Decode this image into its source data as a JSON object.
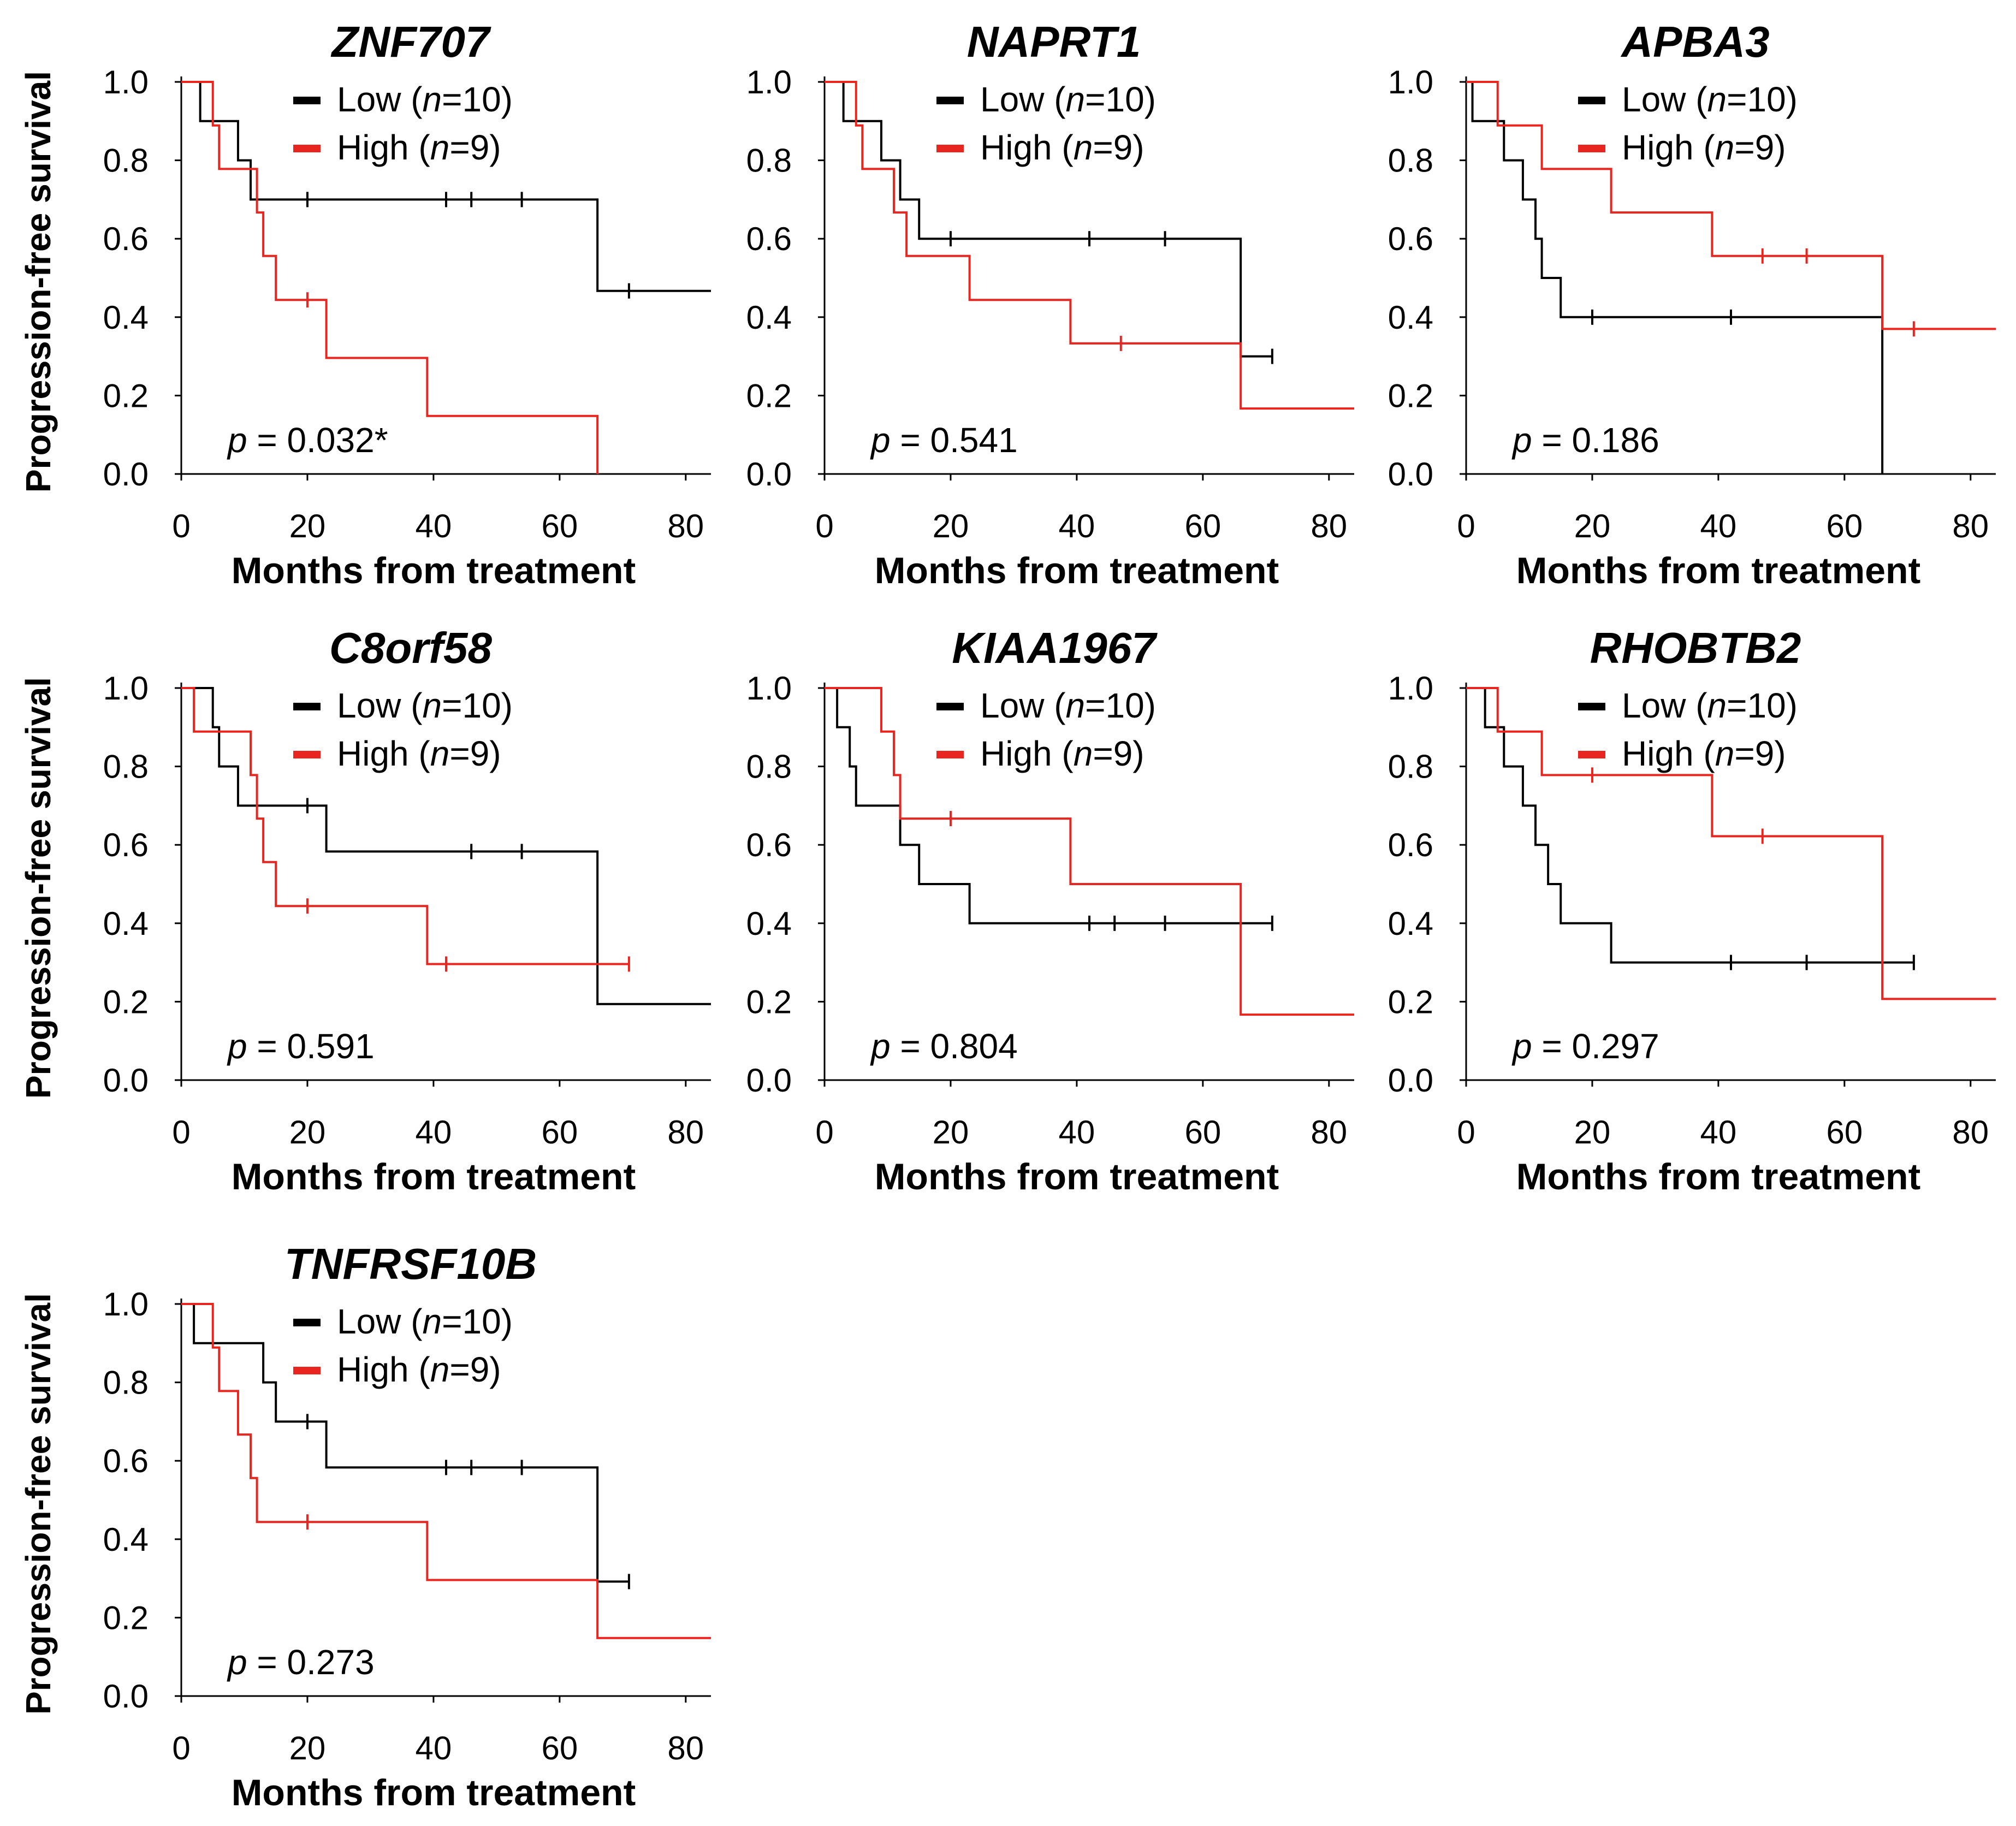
{
  "figure": {
    "layout": "3 x 3 grid of Kaplan-Meier panels"
  },
  "chart_data": [
    {
      "type": "line",
      "subtype": "kaplan-meier",
      "title": "ZNF707",
      "xlabel": "Months from treatment",
      "ylabel": "Progression-free survival",
      "xlim": [
        0,
        84
      ],
      "ylim": [
        0,
        1
      ],
      "xticks": [
        "0",
        "20",
        "40",
        "60",
        "80"
      ],
      "yticks": [
        "0.0",
        "0.2",
        "0.4",
        "0.6",
        "0.8",
        "1.0"
      ],
      "legend": [
        {
          "prefix": "Low (",
          "n": "n",
          "suffix": "=10)",
          "color": "#000000"
        },
        {
          "prefix": "High (",
          "n": "n",
          "suffix": "=9)",
          "color": "#e8251f"
        }
      ],
      "p_value": {
        "label": "p",
        "text": " = 0.032*"
      },
      "series": [
        {
          "name": "Low",
          "color": "#000000",
          "steps": [
            [
              0,
              1.0
            ],
            [
              3,
              0.9
            ],
            [
              9,
              0.8
            ],
            [
              11,
              0.7
            ],
            [
              66,
              0.467
            ],
            [
              84,
              0.467
            ]
          ],
          "censored": [
            [
              20,
              0.7
            ],
            [
              42,
              0.7
            ],
            [
              46,
              0.7
            ],
            [
              54,
              0.7
            ],
            [
              71,
              0.467
            ]
          ]
        },
        {
          "name": "High",
          "color": "#e8251f",
          "steps": [
            [
              0,
              1.0
            ],
            [
              5,
              0.889
            ],
            [
              6,
              0.778
            ],
            [
              12,
              0.667
            ],
            [
              13,
              0.556
            ],
            [
              15,
              0.444
            ],
            [
              23,
              0.296
            ],
            [
              39,
              0.148
            ],
            [
              66,
              0.0
            ]
          ],
          "censored": [
            [
              20,
              0.444
            ]
          ]
        }
      ]
    },
    {
      "type": "line",
      "subtype": "kaplan-meier",
      "title": "NAPRT1",
      "xlabel": "Months from treatment",
      "ylabel": "Progression-free survival",
      "xlim": [
        0,
        84
      ],
      "ylim": [
        0,
        1
      ],
      "xticks": [
        "0",
        "20",
        "40",
        "60",
        "80"
      ],
      "yticks": [
        "0.0",
        "0.2",
        "0.4",
        "0.6",
        "0.8",
        "1.0"
      ],
      "legend": [
        {
          "prefix": "Low (",
          "n": "n",
          "suffix": "=10)",
          "color": "#000000"
        },
        {
          "prefix": "High (",
          "n": "n",
          "suffix": "=9)",
          "color": "#e8251f"
        }
      ],
      "p_value": {
        "label": "p",
        "text": " = 0.541"
      },
      "series": [
        {
          "name": "Low",
          "color": "#000000",
          "steps": [
            [
              0,
              1.0
            ],
            [
              3,
              0.9
            ],
            [
              9,
              0.8
            ],
            [
              12,
              0.7
            ],
            [
              15,
              0.6
            ],
            [
              66,
              0.3
            ],
            [
              71,
              0.3
            ]
          ],
          "censored": [
            [
              20,
              0.6
            ],
            [
              42,
              0.6
            ],
            [
              54,
              0.6
            ],
            [
              71,
              0.3
            ]
          ]
        },
        {
          "name": "High",
          "color": "#e8251f",
          "steps": [
            [
              0,
              1.0
            ],
            [
              5,
              0.889
            ],
            [
              6,
              0.778
            ],
            [
              11,
              0.667
            ],
            [
              13,
              0.556
            ],
            [
              23,
              0.444
            ],
            [
              39,
              0.333
            ],
            [
              66,
              0.167
            ],
            [
              84,
              0.167
            ]
          ],
          "censored": [
            [
              47,
              0.333
            ]
          ]
        }
      ]
    },
    {
      "type": "line",
      "subtype": "kaplan-meier",
      "title": "APBA3",
      "xlabel": "Months from treatment",
      "ylabel": "Progression-free survival",
      "xlim": [
        0,
        84
      ],
      "ylim": [
        0,
        1
      ],
      "xticks": [
        "0",
        "20",
        "40",
        "60",
        "80"
      ],
      "yticks": [
        "0.0",
        "0.2",
        "0.4",
        "0.6",
        "0.8",
        "1.0"
      ],
      "legend": [
        {
          "prefix": "Low (",
          "n": "n",
          "suffix": "=10)",
          "color": "#000000"
        },
        {
          "prefix": "High (",
          "n": "n",
          "suffix": "=9)",
          "color": "#e8251f"
        }
      ],
      "p_value": {
        "label": "p",
        "text": " = 0.186"
      },
      "series": [
        {
          "name": "Low",
          "color": "#000000",
          "steps": [
            [
              0,
              1.0
            ],
            [
              1,
              0.9
            ],
            [
              6,
              0.8
            ],
            [
              9,
              0.7
            ],
            [
              11,
              0.6
            ],
            [
              12,
              0.5
            ],
            [
              15,
              0.4
            ],
            [
              66,
              0.0
            ]
          ],
          "censored": [
            [
              20,
              0.4
            ],
            [
              42,
              0.4
            ]
          ]
        },
        {
          "name": "High",
          "color": "#e8251f",
          "steps": [
            [
              0,
              1.0
            ],
            [
              5,
              0.889
            ],
            [
              12,
              0.778
            ],
            [
              23,
              0.667
            ],
            [
              39,
              0.556
            ],
            [
              66,
              0.37
            ],
            [
              84,
              0.37
            ]
          ],
          "censored": [
            [
              47,
              0.556
            ],
            [
              54,
              0.556
            ],
            [
              71,
              0.37
            ]
          ]
        }
      ]
    },
    {
      "type": "line",
      "subtype": "kaplan-meier",
      "title": "C8orf58",
      "xlabel": "Months from treatment",
      "ylabel": "Progression-free survival",
      "xlim": [
        0,
        84
      ],
      "ylim": [
        0,
        1
      ],
      "xticks": [
        "0",
        "20",
        "40",
        "60",
        "80"
      ],
      "yticks": [
        "0.0",
        "0.2",
        "0.4",
        "0.6",
        "0.8",
        "1.0"
      ],
      "legend": [
        {
          "prefix": "Low (",
          "n": "n",
          "suffix": "=10)",
          "color": "#000000"
        },
        {
          "prefix": "High (",
          "n": "n",
          "suffix": "=9)",
          "color": "#e8251f"
        }
      ],
      "p_value": {
        "label": "p",
        "text": " = 0.591"
      },
      "series": [
        {
          "name": "Low",
          "color": "#000000",
          "steps": [
            [
              0,
              1.0
            ],
            [
              5,
              0.9
            ],
            [
              6,
              0.8
            ],
            [
              9,
              0.7
            ],
            [
              23,
              0.583
            ],
            [
              66,
              0.194
            ],
            [
              84,
              0.194
            ]
          ],
          "censored": [
            [
              20,
              0.7
            ],
            [
              46,
              0.583
            ],
            [
              54,
              0.583
            ]
          ]
        },
        {
          "name": "High",
          "color": "#e8251f",
          "steps": [
            [
              0,
              1.0
            ],
            [
              2,
              0.889
            ],
            [
              11,
              0.778
            ],
            [
              12,
              0.667
            ],
            [
              13,
              0.556
            ],
            [
              15,
              0.444
            ],
            [
              39,
              0.296
            ],
            [
              71,
              0.296
            ]
          ],
          "censored": [
            [
              20,
              0.444
            ],
            [
              42,
              0.296
            ],
            [
              71,
              0.296
            ]
          ]
        }
      ]
    },
    {
      "type": "line",
      "subtype": "kaplan-meier",
      "title": "KIAA1967",
      "xlabel": "Months from treatment",
      "ylabel": "Progression-free survival",
      "xlim": [
        0,
        84
      ],
      "ylim": [
        0,
        1
      ],
      "xticks": [
        "0",
        "20",
        "40",
        "60",
        "80"
      ],
      "yticks": [
        "0.0",
        "0.2",
        "0.4",
        "0.6",
        "0.8",
        "1.0"
      ],
      "legend": [
        {
          "prefix": "Low (",
          "n": "n",
          "suffix": "=10)",
          "color": "#000000"
        },
        {
          "prefix": "High (",
          "n": "n",
          "suffix": "=9)",
          "color": "#e8251f"
        }
      ],
      "p_value": {
        "label": "p",
        "text": " = 0.804"
      },
      "series": [
        {
          "name": "Low",
          "color": "#000000",
          "steps": [
            [
              0,
              1.0
            ],
            [
              2,
              0.9
            ],
            [
              4,
              0.8
            ],
            [
              5,
              0.7
            ],
            [
              12,
              0.6
            ],
            [
              15,
              0.5
            ],
            [
              23,
              0.4
            ],
            [
              71,
              0.4
            ]
          ],
          "censored": [
            [
              42,
              0.4
            ],
            [
              46,
              0.4
            ],
            [
              54,
              0.4
            ],
            [
              71,
              0.4
            ]
          ]
        },
        {
          "name": "High",
          "color": "#e8251f",
          "steps": [
            [
              0,
              1.0
            ],
            [
              9,
              0.889
            ],
            [
              11,
              0.778
            ],
            [
              12,
              0.667
            ],
            [
              39,
              0.5
            ],
            [
              66,
              0.167
            ],
            [
              84,
              0.167
            ]
          ],
          "censored": [
            [
              20,
              0.667
            ]
          ]
        }
      ]
    },
    {
      "type": "line",
      "subtype": "kaplan-meier",
      "title": "RHOBTB2",
      "xlabel": "Months from treatment",
      "ylabel": "Progression-free survival",
      "xlim": [
        0,
        84
      ],
      "ylim": [
        0,
        1
      ],
      "xticks": [
        "0",
        "20",
        "40",
        "60",
        "80"
      ],
      "yticks": [
        "0.0",
        "0.2",
        "0.4",
        "0.6",
        "0.8",
        "1.0"
      ],
      "legend": [
        {
          "prefix": "Low (",
          "n": "n",
          "suffix": "=10)",
          "color": "#000000"
        },
        {
          "prefix": "High (",
          "n": "n",
          "suffix": "=9)",
          "color": "#e8251f"
        }
      ],
      "p_value": {
        "label": "p",
        "text": " = 0.297"
      },
      "series": [
        {
          "name": "Low",
          "color": "#000000",
          "steps": [
            [
              0,
              1.0
            ],
            [
              3,
              0.9
            ],
            [
              6,
              0.8
            ],
            [
              9,
              0.7
            ],
            [
              11,
              0.6
            ],
            [
              13,
              0.5
            ],
            [
              15,
              0.4
            ],
            [
              23,
              0.3
            ],
            [
              71,
              0.3
            ]
          ],
          "censored": [
            [
              42,
              0.3
            ],
            [
              54,
              0.3
            ],
            [
              71,
              0.3
            ]
          ]
        },
        {
          "name": "High",
          "color": "#e8251f",
          "steps": [
            [
              0,
              1.0
            ],
            [
              5,
              0.889
            ],
            [
              12,
              0.778
            ],
            [
              39,
              0.622
            ],
            [
              66,
              0.207
            ],
            [
              84,
              0.207
            ]
          ],
          "censored": [
            [
              20,
              0.778
            ],
            [
              47,
              0.622
            ]
          ]
        }
      ]
    },
    {
      "type": "line",
      "subtype": "kaplan-meier",
      "title": "TNFRSF10B",
      "xlabel": "Months from treatment",
      "ylabel": "Progression-free survival",
      "xlim": [
        0,
        84
      ],
      "ylim": [
        0,
        1
      ],
      "xticks": [
        "0",
        "20",
        "40",
        "60",
        "80"
      ],
      "yticks": [
        "0.0",
        "0.2",
        "0.4",
        "0.6",
        "0.8",
        "1.0"
      ],
      "legend": [
        {
          "prefix": "Low (",
          "n": "n",
          "suffix": "=10)",
          "color": "#000000"
        },
        {
          "prefix": "High (",
          "n": "n",
          "suffix": "=9)",
          "color": "#e8251f"
        }
      ],
      "p_value": {
        "label": "p",
        "text": " = 0.273"
      },
      "series": [
        {
          "name": "Low",
          "color": "#000000",
          "steps": [
            [
              0,
              1.0
            ],
            [
              2,
              0.9
            ],
            [
              13,
              0.8
            ],
            [
              15,
              0.7
            ],
            [
              23,
              0.583
            ],
            [
              66,
              0.292
            ],
            [
              71,
              0.292
            ]
          ],
          "censored": [
            [
              20,
              0.7
            ],
            [
              42,
              0.583
            ],
            [
              46,
              0.583
            ],
            [
              54,
              0.583
            ],
            [
              71,
              0.292
            ]
          ]
        },
        {
          "name": "High",
          "color": "#e8251f",
          "steps": [
            [
              0,
              1.0
            ],
            [
              5,
              0.889
            ],
            [
              6,
              0.778
            ],
            [
              9,
              0.667
            ],
            [
              11,
              0.556
            ],
            [
              12,
              0.444
            ],
            [
              39,
              0.296
            ],
            [
              66,
              0.148
            ],
            [
              84,
              0.148
            ]
          ],
          "censored": [
            [
              20,
              0.444
            ]
          ]
        }
      ]
    }
  ]
}
